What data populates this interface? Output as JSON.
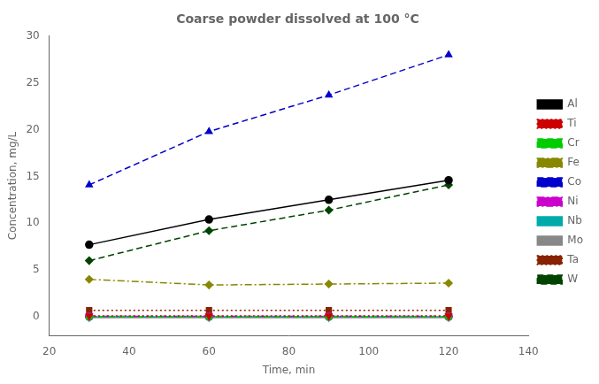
{
  "chart_data": {
    "type": "line",
    "title": "Coarse powder dissolved at 100 °C",
    "x_label": "Time, min",
    "y_label": "Concentration, mg/L",
    "x": [
      30,
      60,
      90,
      120
    ],
    "xlim": [
      20,
      140
    ],
    "xticks": [
      20,
      40,
      60,
      80,
      100,
      120,
      140
    ],
    "ylim": [
      -2,
      30
    ],
    "yticks": [
      0,
      5,
      10,
      15,
      20,
      25,
      30
    ],
    "grid": false,
    "legend": "right",
    "series": [
      {
        "name": "Al",
        "color": "#000000",
        "marker": "circle",
        "line_style": "solid",
        "values": [
          7.7,
          10.4,
          12.5,
          14.6
        ]
      },
      {
        "name": "Ti",
        "color": "#cc0000",
        "marker": "triangle_down",
        "line_style": "dotted",
        "values": [
          0.1,
          0.1,
          0.1,
          0.1
        ]
      },
      {
        "name": "Cr",
        "color": "#00cc00",
        "marker": "square",
        "line_style": "dashed",
        "values": [
          0.02,
          0.02,
          0.02,
          0.02
        ]
      },
      {
        "name": "Fe",
        "color": "#888800",
        "marker": "diamond",
        "line_style": "dashdot",
        "values": [
          4.0,
          3.4,
          3.5,
          3.6
        ]
      },
      {
        "name": "Co",
        "color": "#0000cc",
        "marker": "triangle_up",
        "line_style": "dashed",
        "values": [
          14.1,
          19.8,
          23.7,
          28.0
        ]
      },
      {
        "name": "Ni",
        "color": "#cc00cc",
        "marker": "circle",
        "line_style": "dashdot",
        "values": [
          0.05,
          0.05,
          0.05,
          0.05
        ]
      },
      {
        "name": "Nb",
        "color": "#00aaaa",
        "marker": "circle",
        "line_style": "solid",
        "values": [
          0.0,
          0.0,
          0.0,
          0.0
        ]
      },
      {
        "name": "Mo",
        "color": "#888888",
        "marker": "triangle_down",
        "line_style": "solid",
        "values": [
          -0.1,
          -0.1,
          -0.1,
          -0.1
        ]
      },
      {
        "name": "Ta",
        "color": "#882200",
        "marker": "square",
        "line_style": "dotted",
        "values": [
          0.7,
          0.7,
          0.7,
          0.7
        ]
      },
      {
        "name": "W",
        "color": "#004400",
        "marker": "diamond",
        "line_style": "dashed",
        "values": [
          6.0,
          9.2,
          11.4,
          14.1
        ]
      }
    ]
  }
}
